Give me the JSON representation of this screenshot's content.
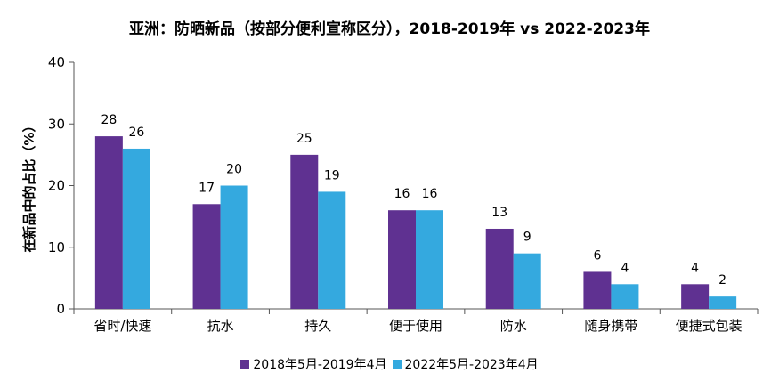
{
  "chart_data": {
    "type": "bar",
    "title": "亚洲：防晒新品（按部分便利宣称区分），2018-2019年 vs 2022-2023年",
    "ylabel": "在新品中的占比（%）",
    "xlabel": "",
    "ylim": [
      0,
      40
    ],
    "yticks": [
      0,
      10,
      20,
      30,
      40
    ],
    "grid": false,
    "legend_position": "bottom",
    "categories": [
      "省时/快速",
      "抗水",
      "持久",
      "便于使用",
      "防水",
      "随身携带",
      "便捷式包装"
    ],
    "series": [
      {
        "name": "2018年5月-2019年4月",
        "color": "#5F3191",
        "values": [
          28,
          17,
          25,
          16,
          13,
          6,
          4
        ]
      },
      {
        "name": "2022年5月-2023年4月",
        "color": "#34A9DF",
        "values": [
          26,
          20,
          19,
          16,
          9,
          4,
          2
        ]
      }
    ]
  }
}
